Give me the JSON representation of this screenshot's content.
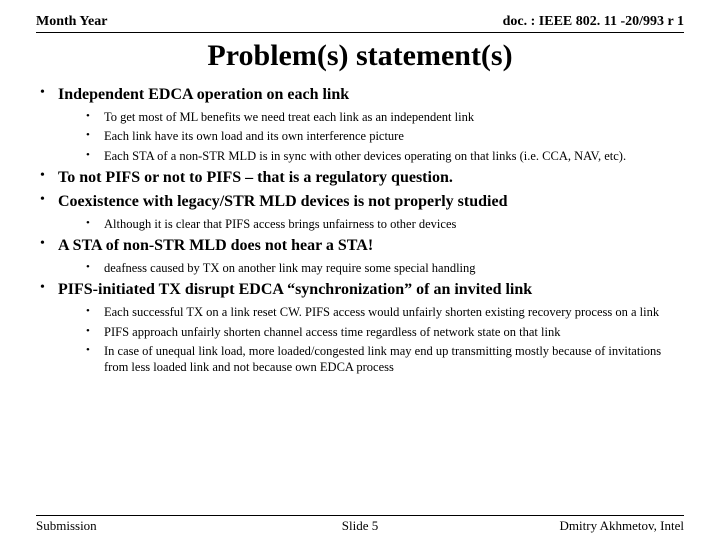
{
  "header": {
    "left": "Month Year",
    "right": "doc. : IEEE 802. 11 -20/993 r 1"
  },
  "title": "Problem(s) statement(s)",
  "bullets": [
    {
      "text": "Independent EDCA operation on each link",
      "sub": [
        "To get most of ML benefits we need treat each link as an independent link",
        "Each link have its own load and its own interference picture",
        "Each STA of a non-STR MLD is in sync with other devices operating on that links (i.e. CCA, NAV, etc)."
      ]
    },
    {
      "text": "To not PIFS or not to PIFS – that is a regulatory question.",
      "sub": []
    },
    {
      "text": "Coexistence with legacy/STR MLD devices is not properly studied",
      "sub": [
        "Although it is clear that PIFS access brings unfairness to other devices"
      ]
    },
    {
      "text": "A STA of non-STR MLD does not hear a STA!",
      "sub": [
        "deafness caused by TX on another link may require some special handling"
      ]
    },
    {
      "text": "PIFS-initiated TX disrupt EDCA “synchronization” of an invited link",
      "sub": [
        "Each successful TX on a link reset CW. PIFS access would unfairly shorten existing recovery process on a link",
        "PIFS approach unfairly shorten channel access time regardless of network state on that link",
        "In case of unequal link load, more loaded/congested link may end up transmitting mostly because of invitations from less loaded link and not because own EDCA process"
      ]
    }
  ],
  "footer": {
    "left": "Submission",
    "center": "Slide 5",
    "right": "Dmitry Akhmetov, Intel"
  }
}
